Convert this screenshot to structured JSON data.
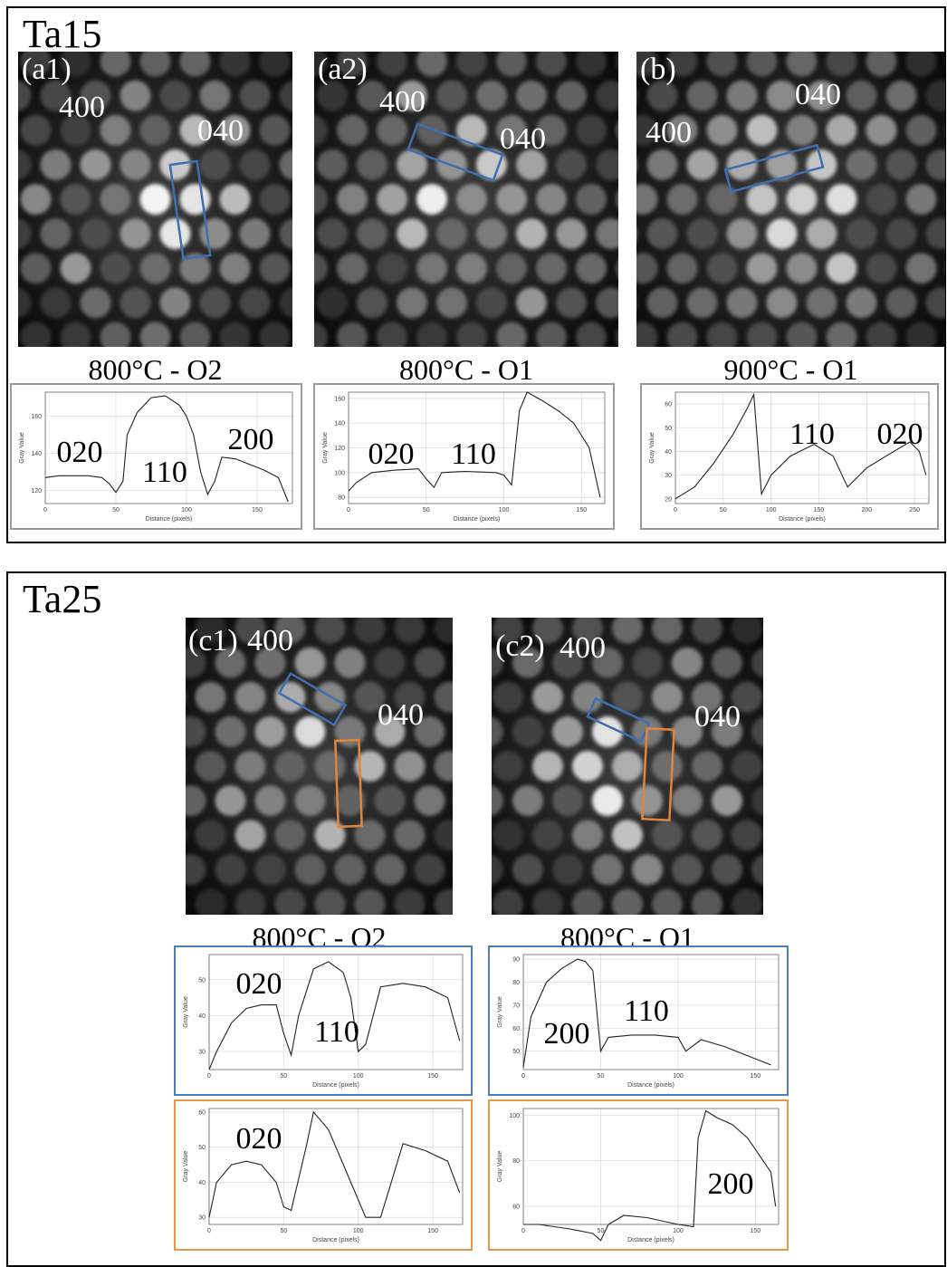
{
  "panels": [
    {
      "title": "Ta15",
      "images": [
        {
          "label": "(a1)",
          "spots": [
            "400",
            "040"
          ],
          "caption": "800°C - O2"
        },
        {
          "label": "(a2)",
          "spots": [
            "400",
            "040"
          ],
          "caption": "800°C - O1"
        },
        {
          "label": "(b)",
          "spots": [
            "400",
            "040"
          ],
          "caption": "900°C - O1"
        }
      ],
      "profiles": [
        {
          "xlabel": "Distance (pixels)",
          "ylabel": "Gray Value",
          "xlim": [
            0,
            175
          ],
          "ylim": [
            113,
            173
          ],
          "xticks": [
            0,
            50,
            100,
            150
          ],
          "yticks": [
            120,
            140,
            160
          ],
          "x": [
            0,
            10,
            20,
            30,
            40,
            45,
            50,
            55,
            58,
            65,
            75,
            85,
            95,
            100,
            105,
            110,
            115,
            120,
            125,
            135,
            145,
            155,
            165,
            172
          ],
          "values": [
            127,
            128,
            128,
            128,
            127,
            124,
            119,
            125,
            150,
            162,
            170,
            171,
            166,
            160,
            150,
            130,
            118,
            125,
            138,
            137,
            134,
            131,
            127,
            114
          ],
          "annotations": [
            "020",
            "110",
            "200"
          ]
        },
        {
          "xlabel": "Distance (pixels)",
          "ylabel": "Gray Value",
          "xlim": [
            0,
            165
          ],
          "ylim": [
            75,
            165
          ],
          "xticks": [
            0,
            50,
            100,
            150
          ],
          "yticks": [
            80,
            100,
            120,
            140,
            160
          ],
          "x": [
            0,
            5,
            15,
            30,
            45,
            50,
            55,
            60,
            75,
            95,
            100,
            105,
            110,
            115,
            125,
            135,
            145,
            155,
            162
          ],
          "values": [
            85,
            92,
            100,
            102,
            103,
            95,
            88,
            100,
            101,
            100,
            98,
            90,
            150,
            165,
            158,
            150,
            140,
            120,
            80
          ],
          "annotations": [
            "020",
            "110"
          ]
        },
        {
          "xlabel": "Distance (pixels)",
          "ylabel": "Gray Value",
          "xlim": [
            0,
            265
          ],
          "ylim": [
            18,
            65
          ],
          "xticks": [
            0,
            50,
            100,
            150,
            200,
            250
          ],
          "yticks": [
            20,
            30,
            40,
            50,
            60
          ],
          "x": [
            0,
            20,
            40,
            60,
            75,
            82,
            90,
            100,
            120,
            145,
            165,
            180,
            200,
            220,
            245,
            255,
            262
          ],
          "values": [
            20,
            25,
            35,
            47,
            58,
            64,
            22,
            30,
            38,
            43,
            38,
            25,
            33,
            38,
            44,
            40,
            30
          ],
          "annotations": [
            "110",
            "020"
          ]
        }
      ]
    },
    {
      "title": "Ta25",
      "images": [
        {
          "label": "(c1)",
          "spots": [
            "400",
            "040"
          ],
          "caption": "800°C - O2"
        },
        {
          "label": "(c2)",
          "spots": [
            "400",
            "040"
          ],
          "caption": "800°C - O1"
        }
      ],
      "profiles": [
        {
          "xlabel": "Distance (pixels)",
          "ylabel": "Gray Value",
          "xlim": [
            0,
            170
          ],
          "ylim": [
            25,
            57
          ],
          "xticks": [
            0,
            50,
            100,
            150
          ],
          "yticks": [
            30,
            40,
            50
          ],
          "x": [
            0,
            5,
            15,
            25,
            35,
            45,
            50,
            55,
            60,
            70,
            80,
            90,
            95,
            100,
            105,
            115,
            130,
            145,
            160,
            168
          ],
          "values": [
            25,
            30,
            38,
            42,
            43,
            43,
            35,
            29,
            40,
            53,
            55,
            52,
            45,
            30,
            32,
            48,
            49,
            48,
            45,
            33
          ],
          "annotations": [
            "020",
            "110"
          ]
        },
        {
          "xlabel": "Distance (pixels)",
          "ylabel": "Gray Value",
          "xlim": [
            0,
            170
          ],
          "ylim": [
            28,
            61
          ],
          "xticks": [
            0,
            50,
            100,
            150
          ],
          "yticks": [
            30,
            40,
            50,
            60
          ],
          "x": [
            0,
            5,
            15,
            25,
            35,
            45,
            50,
            55,
            65,
            70,
            80,
            95,
            100,
            105,
            115,
            130,
            145,
            160,
            168
          ],
          "values": [
            30,
            40,
            45,
            46,
            45,
            40,
            33,
            32,
            50,
            60,
            55,
            40,
            35,
            30,
            30,
            51,
            49,
            46,
            37
          ],
          "annotations": [
            "020"
          ]
        },
        {
          "xlabel": "Distance (pixels)",
          "ylabel": "Gray Value",
          "xlim": [
            0,
            165
          ],
          "ylim": [
            42,
            92
          ],
          "xticks": [
            0,
            50,
            100,
            150
          ],
          "yticks": [
            50,
            60,
            70,
            80,
            90
          ],
          "x": [
            0,
            5,
            15,
            25,
            35,
            40,
            45,
            50,
            55,
            70,
            85,
            100,
            105,
            115,
            130,
            145,
            160
          ],
          "values": [
            43,
            65,
            80,
            86,
            90,
            89,
            85,
            50,
            56,
            57,
            57,
            56,
            50,
            55,
            52,
            48,
            44
          ],
          "annotations": [
            "200",
            "110"
          ]
        },
        {
          "xlabel": "Distance (pixels)",
          "ylabel": "Gray Value",
          "xlim": [
            0,
            165
          ],
          "ylim": [
            52,
            103
          ],
          "xticks": [
            0,
            50,
            100,
            150
          ],
          "yticks": [
            60,
            80,
            100
          ],
          "x": [
            0,
            10,
            30,
            45,
            50,
            55,
            65,
            80,
            100,
            110,
            113,
            118,
            125,
            135,
            145,
            155,
            160,
            163
          ],
          "values": [
            52,
            52,
            50,
            48,
            45,
            52,
            56,
            55,
            52,
            51,
            90,
            102,
            99,
            96,
            90,
            80,
            75,
            60
          ],
          "annotations": [
            "200"
          ]
        }
      ]
    }
  ]
}
